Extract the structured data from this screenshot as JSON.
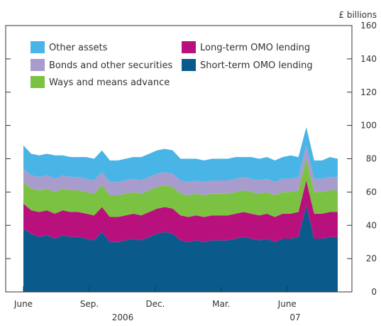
{
  "chart_data": {
    "type": "area",
    "stacked": true,
    "unit_label": "£ billions",
    "x_tick_labels": [
      "June",
      "Sep.",
      "Dec.",
      "Mar.",
      "June"
    ],
    "year_labels": [
      "2006",
      "07"
    ],
    "ylim": [
      0,
      160
    ],
    "y_ticks": [
      0,
      20,
      40,
      60,
      80,
      100,
      120,
      140,
      160
    ],
    "y_tick_labels": [
      "0",
      "20",
      "40",
      "60",
      "80",
      "100",
      "120",
      "140",
      "160"
    ],
    "grid": false,
    "legend_position": "top-left",
    "x_period": {
      "start_month": "June 2006",
      "end_month": "August 2007"
    },
    "series": [
      {
        "name": "Short-term OMO lending",
        "color": "#0b5a8c",
        "values": [
          38,
          35,
          33,
          34,
          32,
          34,
          33,
          33,
          32,
          31,
          36,
          30,
          30,
          31,
          32,
          31,
          33,
          35,
          36,
          35,
          31,
          30,
          31,
          30,
          31,
          31,
          31,
          32,
          33,
          32,
          31,
          32,
          30,
          32,
          32,
          33,
          52,
          32,
          32,
          33,
          33
        ]
      },
      {
        "name": "Long-term OMO lending",
        "color": "#b8117e",
        "values": [
          15,
          14,
          15,
          15,
          15,
          15,
          15,
          15,
          15,
          15,
          15,
          15,
          15,
          15,
          15,
          15,
          15,
          15,
          15,
          15,
          15,
          15,
          15,
          15,
          15,
          15,
          15,
          15,
          15,
          15,
          15,
          15,
          15,
          15,
          15,
          15,
          15,
          15,
          15,
          15,
          15
        ]
      },
      {
        "name": "Ways and means advance",
        "color": "#7cc242",
        "values": [
          13,
          13,
          13,
          13,
          13,
          13,
          13,
          13,
          13,
          13,
          13,
          13,
          13,
          13,
          13,
          13,
          13,
          13,
          13,
          13,
          13,
          13,
          13,
          13,
          13,
          13,
          13,
          13,
          13,
          13,
          13,
          13,
          13,
          13,
          13,
          13,
          13,
          13,
          13,
          13,
          13
        ]
      },
      {
        "name": "Bonds and other securities",
        "color": "#a89ccc",
        "values": [
          8,
          8,
          8,
          8,
          8,
          8,
          8,
          8,
          8,
          8,
          8,
          8,
          8,
          8,
          8,
          8,
          8,
          8,
          8,
          8,
          8,
          8,
          8,
          8,
          8,
          8,
          8,
          8,
          8,
          8,
          8,
          8,
          8,
          8,
          8,
          8,
          8,
          8,
          8,
          8,
          8
        ]
      },
      {
        "name": "Other assets",
        "color": "#49b5e6",
        "values": [
          14,
          13,
          13,
          13,
          14,
          12,
          12,
          12,
          13,
          13,
          13,
          13,
          13,
          13,
          13,
          14,
          14,
          14,
          14,
          14,
          13,
          14,
          13,
          13,
          13,
          13,
          13,
          13,
          12,
          13,
          13,
          13,
          13,
          13,
          14,
          12,
          11,
          11,
          11,
          12,
          11
        ]
      }
    ],
    "legend": [
      {
        "label": "Other assets",
        "series": 4
      },
      {
        "label": "Bonds and other securities",
        "series": 3
      },
      {
        "label": "Ways and means advance",
        "series": 2
      },
      {
        "label": "Long-term OMO lending",
        "series": 1
      },
      {
        "label": "Short-term OMO lending",
        "series": 0
      }
    ]
  }
}
